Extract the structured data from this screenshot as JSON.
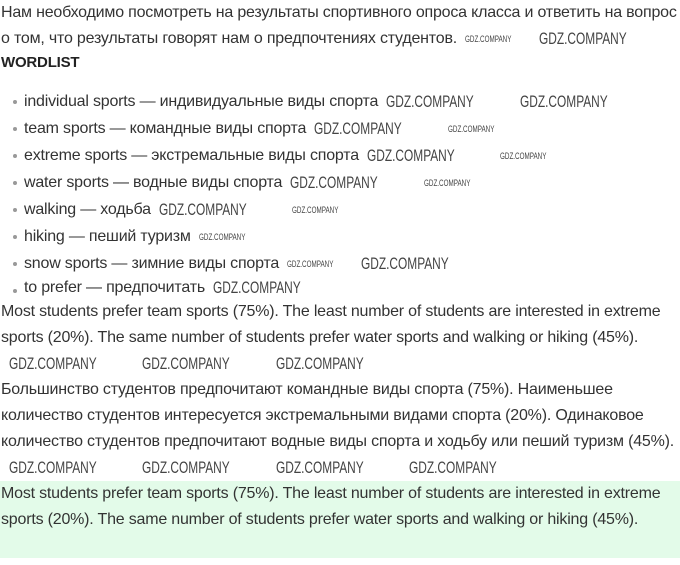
{
  "intro": "Нам необходимо посмотреть на результаты спортивного опроса класса и ответить на вопрос о том, что результаты говорят нам о предпочтениях студентов.",
  "wordlist_title": "WORDLIST",
  "wordlist": [
    "individual sports — индивидуальные виды спорта",
    "team sports — командные виды спорта",
    "extreme sports — экстремальные виды спорта",
    "water sports — водные виды спорта",
    "walking — ходьба",
    "hiking — пеший туризм",
    "snow sports — зимние виды спорта",
    "to prefer — предпочитать"
  ],
  "answer_en": "Most students prefer team sports (75%). The least number of students are interested in extreme sports (20%). The same number of students prefer water sports and walking or hiking (45%).",
  "answer_ru": "Большинство студентов предпочитают командные виды спорта (75%). Наименьшее количество студентов интересуется экстремальными видами спорта (20%). Одинаковое количество студентов предпочитают водные виды спорта и ходьбу или пеший туризм (45%).",
  "answer_highlight": "Most students prefer team sports (75%). The least number of students are interested in extreme sports (20%). The same number of students prefer water sports and walking or hiking (45%).",
  "watermark": "GDZ.COMPANY",
  "colors": {
    "highlight_bg": "#e3fbe9",
    "text": "#333333"
  }
}
